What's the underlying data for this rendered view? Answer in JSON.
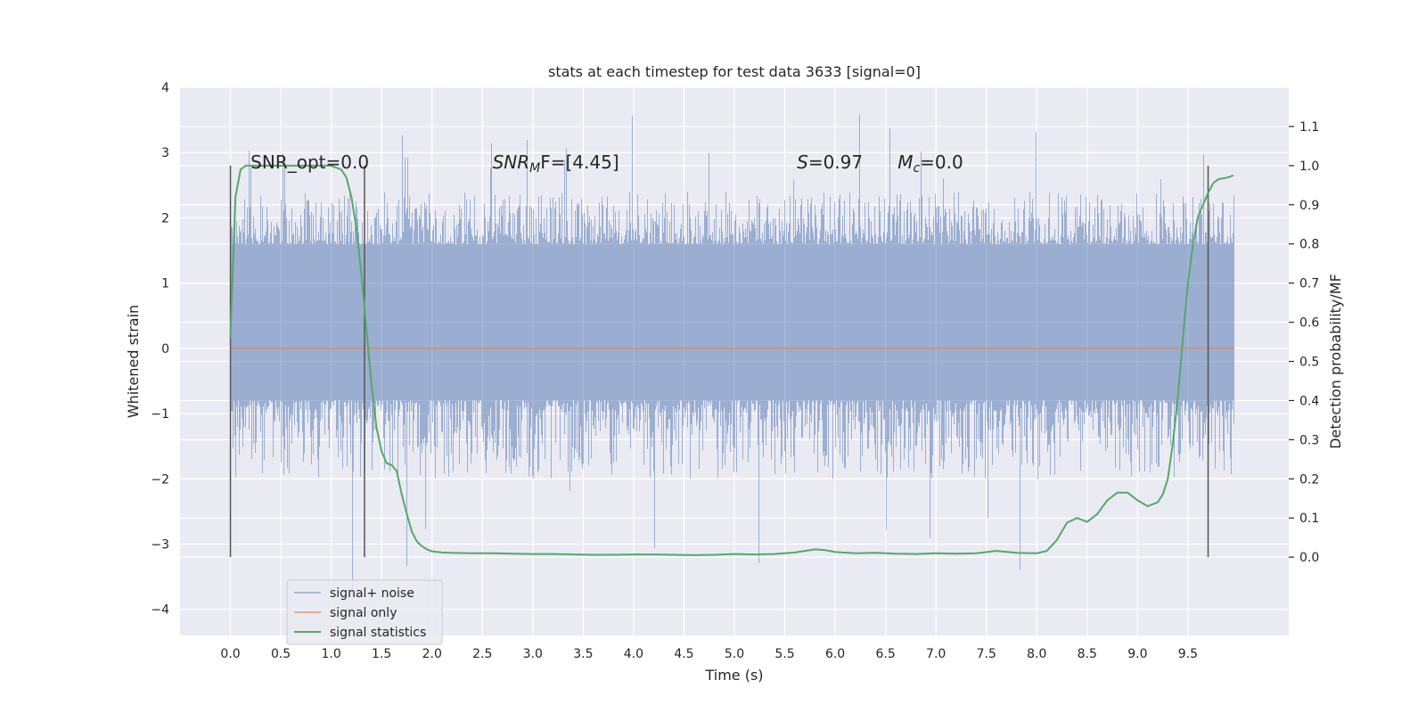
{
  "chart_data": {
    "type": "line",
    "title": "stats at each timestep for test data 3633 [signal=0]",
    "xlabel": "Time (s)",
    "ylabel": "Whitened strain",
    "y2label": "Detection probability/MF",
    "xlim": [
      -0.5,
      10.5
    ],
    "ylim": [
      -4.4,
      4.0
    ],
    "y2lim": [
      -0.2,
      1.2
    ],
    "x_ticks": [
      0.0,
      0.5,
      1.0,
      1.5,
      2.0,
      2.5,
      3.0,
      3.5,
      4.0,
      4.5,
      5.0,
      5.5,
      6.0,
      6.5,
      7.0,
      7.5,
      8.0,
      8.5,
      9.0,
      9.5
    ],
    "x_tick_labels": [
      "0.0",
      "0.5",
      "1.0",
      "1.5",
      "2.0",
      "2.5",
      "3.0",
      "3.5",
      "4.0",
      "4.5",
      "5.0",
      "5.5",
      "6.0",
      "6.5",
      "7.0",
      "7.5",
      "8.0",
      "8.5",
      "9.0",
      "9.5"
    ],
    "y_ticks": [
      4,
      3,
      2,
      1,
      0,
      -1,
      -2,
      -3,
      -4
    ],
    "y_tick_labels": [
      "4",
      "3",
      "2",
      "1",
      "0",
      "−1",
      "−2",
      "−3",
      "−4"
    ],
    "y2_ticks": [
      1.1,
      1.0,
      0.9,
      0.8,
      0.7,
      0.6,
      0.5,
      0.4,
      0.3,
      0.2,
      0.1,
      0.0
    ],
    "y2_tick_labels": [
      "1.1",
      "1.0",
      "0.9",
      "0.8",
      "0.7",
      "0.6",
      "0.5",
      "0.4",
      "0.3",
      "0.2",
      "0.1",
      "0.0"
    ],
    "grid": true,
    "legend_placement": "lower-left",
    "colors": {
      "background": "#eaeaf2",
      "grid": "#ffffff",
      "noise": "#4c72b0",
      "signal": "#dd8452",
      "stat": "#55a868",
      "vline": "#555555"
    },
    "series": [
      {
        "name": "signal+ noise",
        "kind": "noise-band",
        "x_range": [
          0.0,
          9.96
        ],
        "band": [
          -0.8,
          1.6
        ],
        "typical_range": [
          -2.0,
          2.4
        ],
        "extreme_range": [
          -4.05,
          3.65
        ]
      },
      {
        "name": "signal only",
        "x": [
          0.0,
          9.96
        ],
        "y": [
          0.0,
          0.0
        ]
      },
      {
        "name": "signal statistics",
        "axis": "right",
        "x": [
          0.0,
          0.05,
          0.1,
          0.15,
          0.2,
          0.3,
          0.4,
          0.5,
          0.6,
          0.7,
          0.8,
          0.9,
          1.0,
          1.1,
          1.15,
          1.2,
          1.25,
          1.3,
          1.35,
          1.4,
          1.45,
          1.5,
          1.55,
          1.6,
          1.65,
          1.7,
          1.75,
          1.8,
          1.85,
          1.9,
          1.95,
          2.0,
          2.1,
          2.2,
          2.4,
          2.6,
          2.8,
          3.0,
          3.2,
          3.4,
          3.6,
          3.8,
          4.0,
          4.2,
          4.4,
          4.6,
          4.8,
          5.0,
          5.2,
          5.4,
          5.6,
          5.7,
          5.8,
          5.9,
          6.0,
          6.2,
          6.4,
          6.6,
          6.8,
          7.0,
          7.2,
          7.4,
          7.6,
          7.8,
          8.0,
          8.1,
          8.2,
          8.3,
          8.4,
          8.5,
          8.6,
          8.7,
          8.8,
          8.9,
          9.0,
          9.1,
          9.2,
          9.25,
          9.3,
          9.35,
          9.4,
          9.45,
          9.5,
          9.55,
          9.6,
          9.7,
          9.75,
          9.8,
          9.9,
          9.95
        ],
        "y": [
          0.56,
          0.92,
          0.99,
          1.0,
          1.0,
          1.0,
          1.0,
          1.0,
          1.0,
          1.0,
          1.0,
          1.0,
          1.0,
          0.99,
          0.97,
          0.92,
          0.84,
          0.72,
          0.58,
          0.44,
          0.33,
          0.27,
          0.24,
          0.235,
          0.22,
          0.16,
          0.11,
          0.065,
          0.04,
          0.028,
          0.02,
          0.015,
          0.012,
          0.011,
          0.01,
          0.01,
          0.009,
          0.008,
          0.008,
          0.007,
          0.006,
          0.006,
          0.007,
          0.007,
          0.006,
          0.005,
          0.006,
          0.008,
          0.007,
          0.008,
          0.012,
          0.016,
          0.02,
          0.018,
          0.013,
          0.01,
          0.011,
          0.009,
          0.008,
          0.01,
          0.009,
          0.01,
          0.016,
          0.011,
          0.01,
          0.016,
          0.044,
          0.088,
          0.1,
          0.09,
          0.11,
          0.145,
          0.165,
          0.165,
          0.145,
          0.13,
          0.14,
          0.16,
          0.2,
          0.29,
          0.41,
          0.56,
          0.7,
          0.8,
          0.87,
          0.93,
          0.955,
          0.965,
          0.97,
          0.975
        ]
      }
    ],
    "vlines": [
      0.0,
      1.33,
      9.7
    ],
    "annotations": [
      {
        "text": "SNR_opt=0.0",
        "x": 0.2,
        "y": 2.85
      },
      {
        "text": "SNR",
        "sub": "M",
        "tail": "F=[4.45]",
        "x": 2.6,
        "y": 2.85,
        "italic": true
      },
      {
        "text": "S",
        "tail": "=0.97",
        "x": 5.62,
        "y": 2.85,
        "italic": true
      },
      {
        "text": "M",
        "sub": "c",
        "tail": "=0.0",
        "x": 6.62,
        "y": 2.85,
        "italic": true
      }
    ]
  }
}
